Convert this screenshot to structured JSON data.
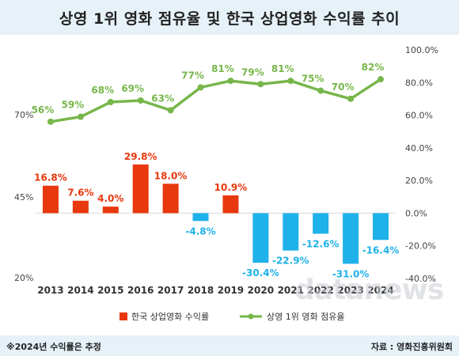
{
  "title": "상영 1위 영화 점유율 및 한국 상업영화 수익률 추이",
  "note": "※2024년 수익률은 추정",
  "source": "자료 : 영화진흥위원회",
  "watermark": "datanews",
  "colors": {
    "bar_positive": "#e8380d",
    "bar_negative": "#1fb1ea",
    "line": "#77b64a",
    "title_band": "#e6f2f8"
  },
  "chart_data": {
    "type": "bar+line",
    "categories": [
      "2013",
      "2014",
      "2015",
      "2016",
      "2017",
      "2018",
      "2019",
      "2020",
      "2021",
      "2022",
      "2023",
      "2024"
    ],
    "series": [
      {
        "name": "한국 상업영화 수익률",
        "type": "bar",
        "axis": "right",
        "values": [
          16.8,
          7.6,
          4.0,
          29.8,
          18.0,
          -4.8,
          10.9,
          -30.4,
          -22.9,
          -12.6,
          -31.0,
          -16.4
        ],
        "labels": [
          "16.8%",
          "7.6%",
          "4.0%",
          "29.8%",
          "18.0%",
          "-4.8%",
          "10.9%",
          "-30.4%",
          "-22.9%",
          "-12.6%",
          "-31.0%",
          "-16.4%"
        ]
      },
      {
        "name": "상영 1위 영화 점유율",
        "type": "line",
        "axis": "right",
        "values": [
          56,
          59,
          68,
          69,
          63,
          77,
          81,
          79,
          81,
          75,
          70,
          82
        ],
        "labels": [
          "56%",
          "59%",
          "68%",
          "69%",
          "63%",
          "77%",
          "81%",
          "79%",
          "81%",
          "75%",
          "70%",
          "82%"
        ]
      }
    ],
    "left_axis": {
      "ticks": [
        "70%",
        "45%",
        "20%"
      ]
    },
    "right_axis": {
      "range": [
        -40,
        100
      ],
      "ticks": [
        "100.0%",
        "80.0%",
        "60.0%",
        "40.0%",
        "20.0%",
        "0.0%",
        "-20.0%",
        "-40.0%"
      ]
    },
    "legend": {
      "placement": "bottom"
    }
  }
}
